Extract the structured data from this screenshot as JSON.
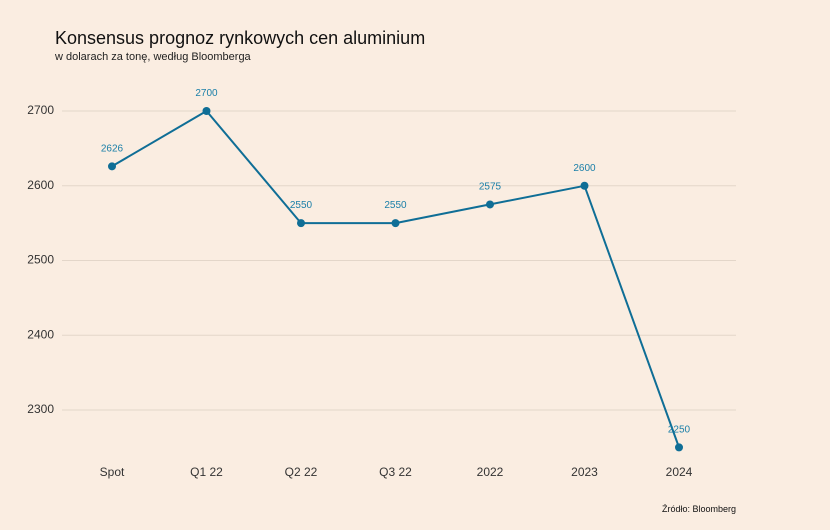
{
  "chart_data": {
    "type": "line",
    "title": "Konsensus prognoz rynkowych cen aluminium",
    "subtitle": "w dolarach za tonę, według Bloomberga",
    "source": "Źródło: Bloomberg",
    "xlabel": "",
    "ylabel": "",
    "categories": [
      "Spot",
      "Q1 22",
      "Q2 22",
      "Q3 22",
      "2022",
      "2023",
      "2024"
    ],
    "series": [
      {
        "values": [
          2626,
          2700,
          2550,
          2550,
          2575,
          2600,
          2250
        ]
      }
    ],
    "data_labels": [
      "2626",
      "2700",
      "2550",
      "2550",
      "2575",
      "2600",
      "2250"
    ],
    "yticks": [
      2300,
      2400,
      2500,
      2600,
      2700
    ],
    "ytick_labels": [
      "2300",
      "2400",
      "2500",
      "2600",
      "2700"
    ],
    "ylim": [
      2300,
      2700
    ],
    "grid": true,
    "legend": "none",
    "colors": {
      "line": "#0f6e96",
      "labels": "#1a7fa8",
      "background": "#faede1",
      "grid": "#e3d6c9"
    }
  }
}
